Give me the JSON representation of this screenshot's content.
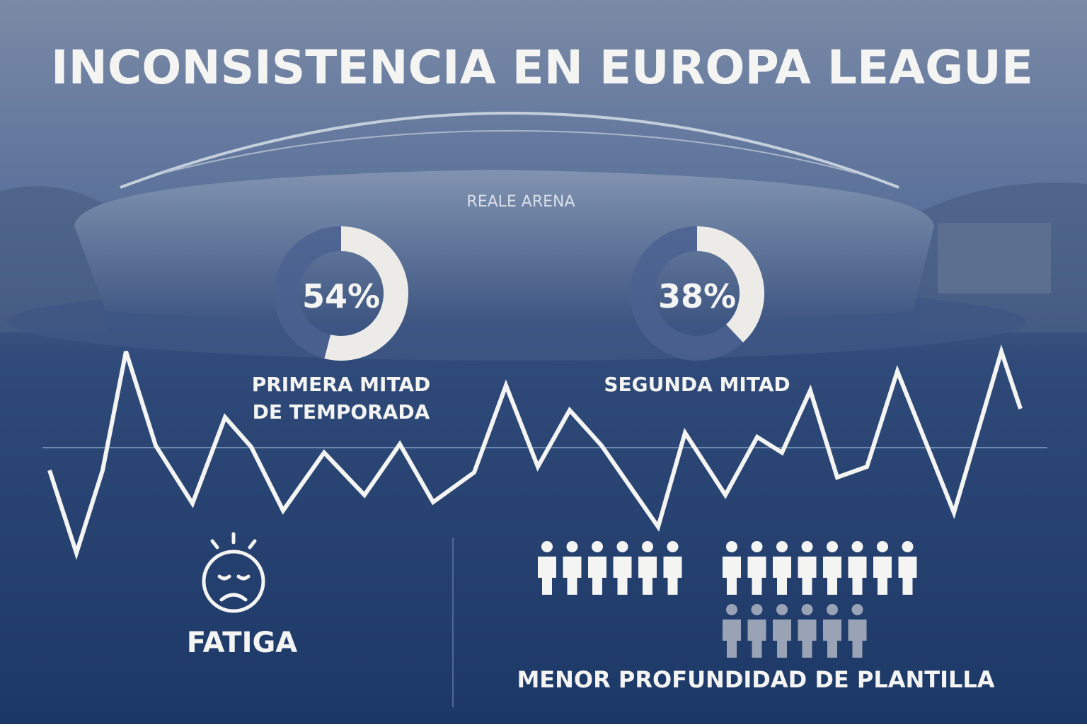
{
  "title": "INCONSISTENCIA EN EUROPA LEAGUE",
  "stadium_sign": "REALE ARENA",
  "donuts": [
    {
      "value": 54,
      "label": "54%",
      "caption_lines": [
        "PRIMERA MITAD",
        "DE TEMPORADA"
      ]
    },
    {
      "value": 38,
      "label": "38%",
      "caption_lines": [
        "SEGUNDA MITAD"
      ]
    }
  ],
  "fatigue_label": "FATIGA",
  "squad_label": "MENOR PROFUNDIDAD DE PLANTILLA"
}
